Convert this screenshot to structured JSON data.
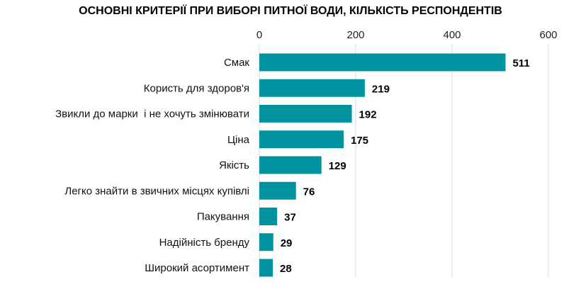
{
  "chart_data": {
    "type": "bar",
    "orientation": "horizontal",
    "title": "ОСНОВНІ КРИТЕРІЇ ПРИ ВИБОРІ ПИТНОЇ ВОДИ, КІЛЬКІСТЬ РЕСПОНДЕНТІВ",
    "categories": [
      "Смак",
      "Користь для здоров'я",
      "Звикли до марки  і не хочуть змінювати",
      "Ціна",
      "Якість",
      "Легко знайти в звичних місцях купівлі",
      "Пакування",
      "Надійність бренду",
      "Широкий асортимент"
    ],
    "values": [
      511,
      219,
      192,
      175,
      129,
      76,
      37,
      29,
      28
    ],
    "xlim": [
      0,
      600
    ],
    "xticks": [
      0,
      200,
      400,
      600
    ],
    "x_axis_position": "top",
    "grid": true,
    "bar_color": "#00929F",
    "gridline_color": "#d9d9d9",
    "xlabel": "",
    "ylabel": ""
  }
}
